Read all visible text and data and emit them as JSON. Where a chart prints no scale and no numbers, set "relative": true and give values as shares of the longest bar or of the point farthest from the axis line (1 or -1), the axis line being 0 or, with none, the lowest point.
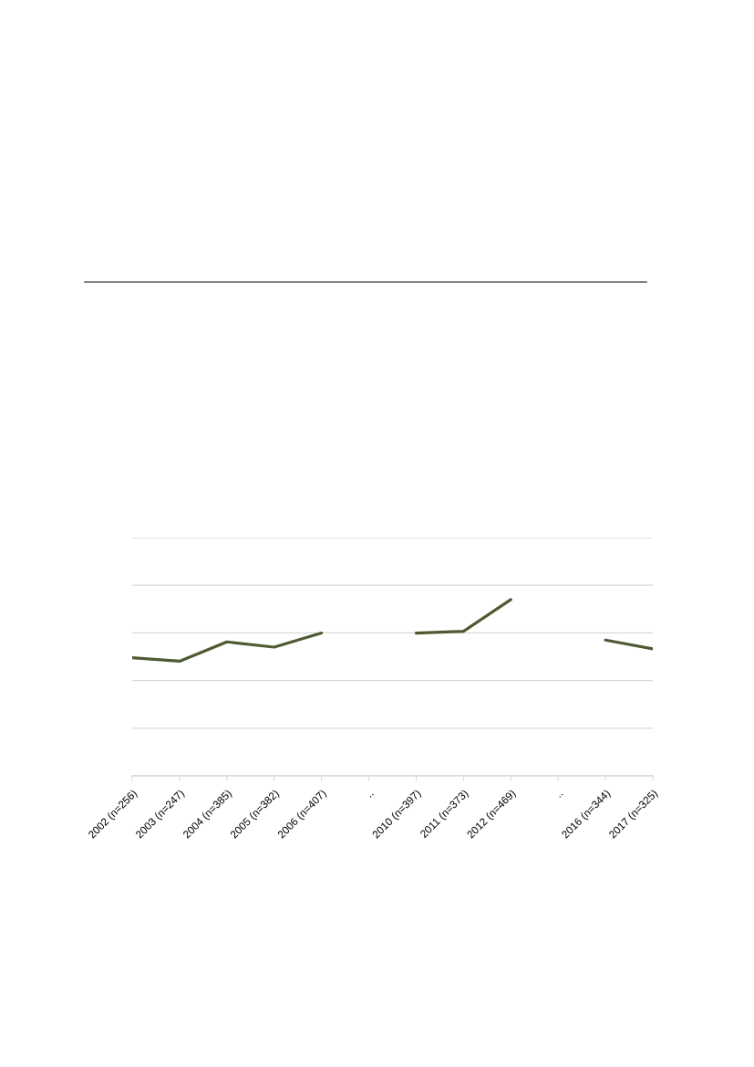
{
  "chart_data": {
    "type": "line",
    "relative": true,
    "categories": [
      "2002 (n=256)",
      "2003 (n=247)",
      "2004 (n=385)",
      "2005 (n=382)",
      "2006 (n=407)",
      "..",
      "2010 (n=397)",
      "2011 (n=373)",
      "2012 (n=469)",
      "..",
      "2016 (n=344)",
      "2017 (n=325)"
    ],
    "series": [
      {
        "color": "#4e5b31",
        "values": [
          0.67,
          0.65,
          0.76,
          0.73,
          0.81,
          null,
          0.81,
          0.82,
          1,
          null,
          0.77,
          0.72
        ]
      }
    ],
    "grid": "y",
    "tick_labels": "x"
  }
}
